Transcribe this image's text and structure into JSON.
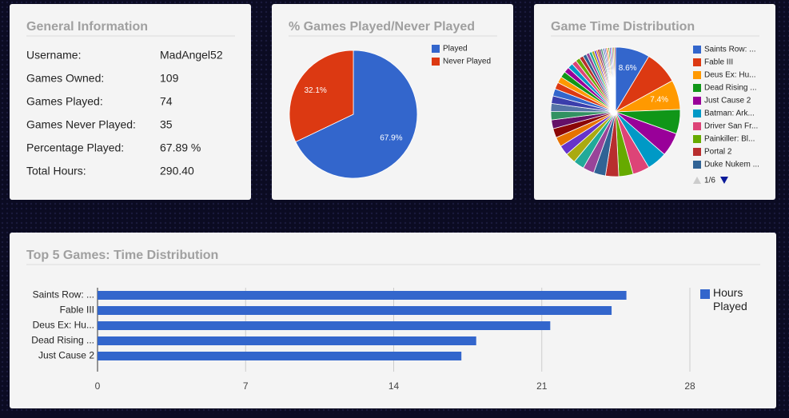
{
  "general_info": {
    "title": "General Information",
    "rows": [
      [
        "Username:",
        "MadAngel52"
      ],
      [
        "Games Owned:",
        "109"
      ],
      [
        "Games Played:",
        "74"
      ],
      [
        "Games Never Played:",
        "35"
      ],
      [
        "Percentage Played:",
        "67.89 %"
      ],
      [
        "Total Hours:",
        "290.40"
      ]
    ]
  },
  "chart_data": [
    {
      "type": "pie",
      "title": "% Games Played/Never Played",
      "categories": [
        "Played",
        "Never Played"
      ],
      "values": [
        67.9,
        32.1
      ],
      "value_labels": [
        "67.9%",
        "32.1%"
      ],
      "colors": [
        "#3366cc",
        "#dc3912"
      ],
      "legend": "right"
    },
    {
      "type": "pie",
      "title": "Game Time Distribution",
      "categories": [
        "Saints Row: ...",
        "Fable III",
        "Deus Ex: Hu...",
        "Dead Rising ...",
        "Just Cause 2",
        "Batman: Ark...",
        "Driver San Fr...",
        "Painkiller: Bl...",
        "Portal 2",
        "Duke Nukem ...",
        null,
        null,
        null,
        null,
        null,
        null,
        null,
        null,
        null,
        null,
        null,
        null,
        null,
        null,
        null,
        null,
        null,
        null,
        null,
        null,
        null,
        null,
        null,
        null,
        null,
        null,
        null,
        null,
        null,
        null,
        null,
        null,
        null,
        null,
        null,
        null,
        null,
        null,
        null
      ],
      "values": [
        8.6,
        8.4,
        7.4,
        6.1,
        5.9,
        5.0,
        4.2,
        3.6,
        3.3,
        3.0,
        2.8,
        2.7,
        2.6,
        2.5,
        2.4,
        2.3,
        2.2,
        2.1,
        2.0,
        1.9,
        1.8,
        1.7,
        1.6,
        1.5,
        1.4,
        1.3,
        1.2,
        1.1,
        1.0,
        0.9,
        0.8,
        0.7,
        0.6,
        0.5,
        0.4,
        0.4,
        0.4,
        0.4,
        0.3,
        0.3,
        0.3,
        0.3,
        0.3,
        0.3,
        0.3,
        0.3,
        0.3,
        0.3,
        0.3
      ],
      "value_labels": [
        "8.6%",
        null,
        "7.4%",
        null,
        null,
        null,
        null,
        null,
        null,
        null,
        null,
        null,
        null,
        null,
        null,
        null,
        null,
        null,
        null,
        null,
        null,
        null,
        null,
        null,
        null,
        null,
        null,
        null,
        null,
        null,
        null,
        null,
        null,
        null,
        null,
        null,
        null,
        null,
        null,
        null,
        null,
        null,
        null,
        null,
        null,
        null,
        null,
        null,
        null
      ],
      "colors": [
        "#3366cc",
        "#dc3912",
        "#ff9900",
        "#109618",
        "#990099",
        "#0099c6",
        "#dd4477",
        "#66aa00",
        "#b82e2e",
        "#316395",
        "#994499",
        "#22aa99",
        "#aaaa11",
        "#6633cc",
        "#e67300",
        "#8b0707",
        "#651067",
        "#329262",
        "#5574a6",
        "#3b3eac"
      ],
      "legend": "right",
      "legend_page": "1/6"
    },
    {
      "type": "hbar",
      "title": "Top 5 Games: Time Distribution",
      "categories": [
        "Saints Row: ...",
        "Fable III",
        "Deus Ex: Hu...",
        "Dead Rising ...",
        "Just Cause 2"
      ],
      "series": [
        {
          "name": "Hours Played",
          "color": "#3366cc",
          "values": [
            25.0,
            24.3,
            21.4,
            17.9,
            17.2
          ]
        }
      ],
      "xlim": [
        0,
        28
      ],
      "xticks": [
        0,
        7,
        14,
        21,
        28
      ],
      "grid": true,
      "legend": "right"
    }
  ]
}
